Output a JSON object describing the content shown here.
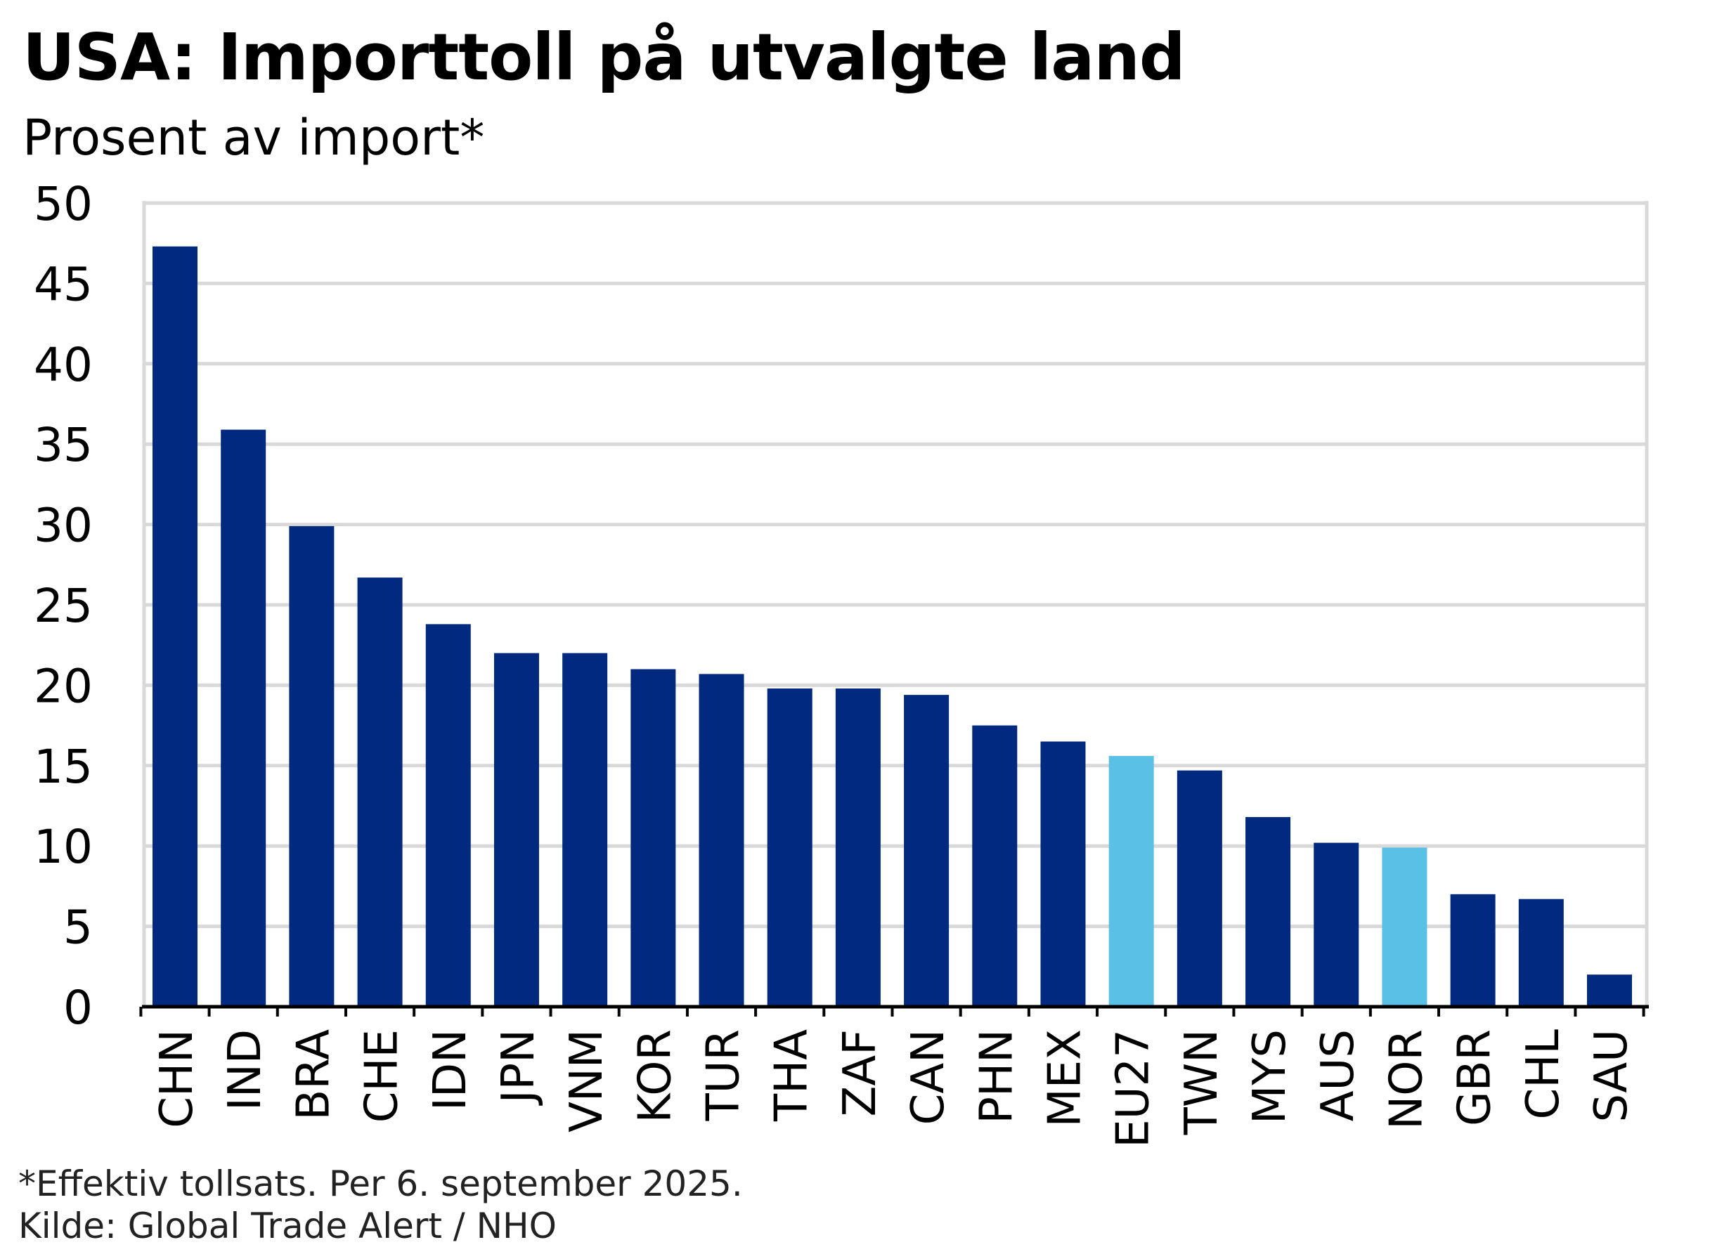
{
  "chart_data": {
    "type": "bar",
    "title": "USA: Importtoll på utvalgte land",
    "subtitle": "Prosent av import*",
    "xlabel": "",
    "ylabel": "Prosent av import*",
    "ylim": [
      0,
      50
    ],
    "yticks": [
      "0",
      "5",
      "10",
      "15",
      "20",
      "25",
      "30",
      "35",
      "40",
      "45",
      "50"
    ],
    "grid": true,
    "categories": [
      "CHN",
      "IND",
      "BRA",
      "CHE",
      "IDN",
      "JPN",
      "VNM",
      "KOR",
      "TUR",
      "THA",
      "ZAF",
      "CAN",
      "PHN",
      "MEX",
      "EU27",
      "TWN",
      "MYS",
      "AUS",
      "NOR",
      "GBR",
      "CHL",
      "SAU"
    ],
    "values": [
      47.3,
      35.9,
      29.9,
      26.7,
      23.8,
      22.0,
      22.0,
      21.0,
      20.7,
      19.8,
      19.8,
      19.4,
      17.5,
      16.5,
      15.6,
      14.7,
      11.8,
      10.2,
      9.9,
      7.0,
      6.7,
      2.0
    ],
    "highlight": [
      "EU27",
      "NOR"
    ],
    "colors": {
      "default": "#00297f",
      "highlight": "#5bc0e6",
      "grid": "#d9d9d9"
    }
  },
  "footnote": "*Effektiv tollsats. Per 6. september 2025.",
  "source": "Kilde: Global Trade Alert / NHO"
}
